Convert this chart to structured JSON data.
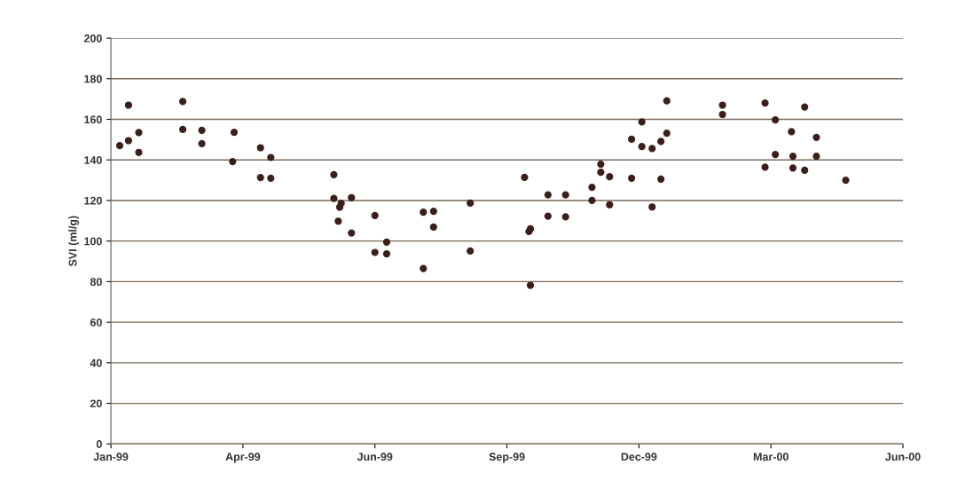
{
  "chart_data": {
    "type": "scatter",
    "ylabel": "SVI (ml/g)",
    "marker": "circle",
    "grid": "y",
    "xlim": [
      "1999-01-01",
      "2000-06-24"
    ],
    "xticks": [
      {
        "value": "1999-01-01",
        "label": "Jan-99"
      },
      {
        "value": "1999-04-01",
        "label": "Apr-99"
      },
      {
        "value": "1999-06-30",
        "label": "Jun-99"
      },
      {
        "value": "1999-09-28",
        "label": "Sep-99"
      },
      {
        "value": "1999-12-27",
        "label": "Dec-99"
      },
      {
        "value": "2000-03-26",
        "label": "Mar-00"
      },
      {
        "value": "2000-06-24",
        "label": "Jun-00"
      }
    ],
    "ylim": [
      0,
      200
    ],
    "yticks": [
      0,
      20,
      40,
      60,
      80,
      100,
      120,
      140,
      160,
      180,
      200
    ],
    "series": [
      {
        "color": "#3a1f1a",
        "x": [
          "1999-01-07",
          "1999-01-13",
          "1999-01-13",
          "1999-01-20",
          "1999-01-20",
          "1999-02-19",
          "1999-02-19",
          "1999-03-04",
          "1999-03-04",
          "1999-03-26",
          "1999-03-25",
          "1999-04-13",
          "1999-04-20",
          "1999-04-13",
          "1999-04-20",
          "1999-06-02",
          "1999-06-02",
          "1999-06-07",
          "1999-06-06",
          "1999-06-14",
          "1999-06-05",
          "1999-06-14",
          "1999-06-30",
          "1999-07-08",
          "1999-06-30",
          "1999-07-08",
          "1999-08-02",
          "1999-08-09",
          "1999-08-09",
          "1999-08-02",
          "1999-09-03",
          "1999-09-03",
          "1999-10-10",
          "1999-10-14",
          "1999-10-13",
          "1999-10-14",
          "1999-10-26",
          "1999-10-26",
          "1999-11-07",
          "1999-11-07",
          "1999-11-25",
          "1999-11-25",
          "1999-12-01",
          "1999-12-01",
          "1999-12-07",
          "1999-12-07",
          "1999-12-22",
          "1999-12-22",
          "1999-12-29",
          "1999-12-29",
          "2000-01-05",
          "2000-01-05",
          "2000-01-11",
          "2000-01-11",
          "2000-01-15",
          "2000-01-15",
          "2000-02-22",
          "2000-02-22",
          "2000-03-22",
          "2000-03-29",
          "2000-03-22",
          "2000-03-29",
          "2000-04-18",
          "2000-04-09",
          "2000-04-26",
          "2000-04-10",
          "2000-04-10",
          "2000-04-18",
          "2000-04-26",
          "2000-05-16"
        ],
        "values": [
          147,
          167,
          149.5,
          153.5,
          143.7,
          168.8,
          155,
          154.6,
          148,
          153.6,
          139.2,
          146,
          141.2,
          131.3,
          131,
          132.7,
          121,
          118.6,
          116.7,
          121.4,
          109.8,
          104,
          112.6,
          99.5,
          94.4,
          93.7,
          114.2,
          114.7,
          106.9,
          86.5,
          118.7,
          95.1,
          131.4,
          106,
          104.7,
          78.2,
          122.8,
          112.3,
          122.8,
          111.9,
          126.5,
          120,
          137.9,
          133.9,
          131.7,
          117.9,
          131,
          150.2,
          158.7,
          146.6,
          145.6,
          116.8,
          149.1,
          130.5,
          153.2,
          169.1,
          167,
          162.4,
          168,
          159.7,
          136.4,
          142.7,
          166.1,
          153.9,
          151.1,
          141.8,
          136,
          134.9,
          141.8,
          130
        ]
      }
    ]
  }
}
